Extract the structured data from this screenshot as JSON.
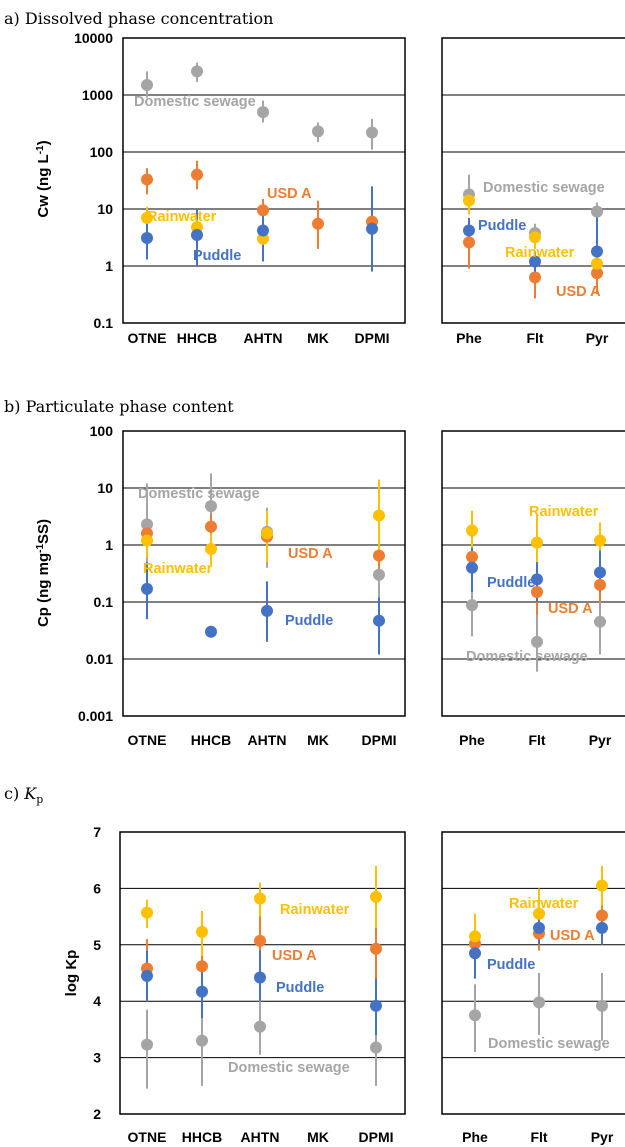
{
  "colors": {
    "Domestic sewage": "#a5a5a5",
    "USD A": "#ed7d31",
    "Rainwater": "#ffc000",
    "Puddle": "#4472c4"
  },
  "chart_data": [
    {
      "type": "scatter",
      "title": "a) Dissolved phase concentration",
      "ylabel": "Cw (ng L",
      "ylabel_sup": "-1",
      "ylabel_end": ")",
      "yscale": "log",
      "ylim": [
        0.1,
        10000
      ],
      "yticks": [
        "0.1",
        "1",
        "10",
        "100",
        "1000",
        "10000"
      ],
      "gridlines": [
        1,
        10,
        100,
        1000
      ],
      "categories_left": [
        "OTNE",
        "HHCB",
        "AHTN",
        "MK",
        "DPMI"
      ],
      "categories_right": [
        "Phe",
        "Flt",
        "Pyr"
      ],
      "series": [
        {
          "name": "Domestic sewage",
          "points": [
            {
              "x": "OTNE",
              "y": 1500,
              "lo": 900,
              "hi": 2600
            },
            {
              "x": "HHCB",
              "y": 2600,
              "lo": 1700,
              "hi": 3700
            },
            {
              "x": "AHTN",
              "y": 500,
              "lo": 330,
              "hi": 800
            },
            {
              "x": "MK",
              "y": 230,
              "lo": 150,
              "hi": 330
            },
            {
              "x": "DPMI",
              "y": 220,
              "lo": 110,
              "hi": 380
            },
            {
              "x": "Phe",
              "y": 18,
              "lo": 9,
              "hi": 40
            },
            {
              "x": "Flt",
              "y": 3.8,
              "lo": 2.5,
              "hi": 5.5
            },
            {
              "x": "Pyr",
              "y": 9,
              "lo": 5,
              "hi": 13
            }
          ]
        },
        {
          "name": "USD A",
          "points": [
            {
              "x": "OTNE",
              "y": 33,
              "lo": 18,
              "hi": 52
            },
            {
              "x": "HHCB",
              "y": 40,
              "lo": 22,
              "hi": 70
            },
            {
              "x": "AHTN",
              "y": 9.5,
              "lo": 5,
              "hi": 15
            },
            {
              "x": "MK",
              "y": 5.5,
              "lo": 2,
              "hi": 14
            },
            {
              "x": "DPMI",
              "y": 6,
              "lo": 3,
              "hi": 11
            },
            {
              "x": "Phe",
              "y": 2.6,
              "lo": 0.9,
              "hi": 4.5
            },
            {
              "x": "Flt",
              "y": 0.63,
              "lo": 0.27,
              "hi": 1.1
            },
            {
              "x": "Pyr",
              "y": 0.75,
              "lo": 0.32,
              "hi": 1.1
            }
          ]
        },
        {
          "name": "Rainwater",
          "points": [
            {
              "x": "OTNE",
              "y": 7,
              "lo": 4,
              "hi": 11
            },
            {
              "x": "HHCB",
              "y": 4.8,
              "lo": 2.5,
              "hi": 8
            },
            {
              "x": "AHTN",
              "y": 3,
              "lo": 1.8,
              "hi": 5
            },
            {
              "x": "Phe",
              "y": 14,
              "lo": 8,
              "hi": 20
            },
            {
              "x": "Flt",
              "y": 3.2,
              "lo": 2,
              "hi": 4.5
            },
            {
              "x": "Pyr",
              "y": 1.1,
              "lo": 0.6,
              "hi": 1.8
            }
          ]
        },
        {
          "name": "Puddle",
          "points": [
            {
              "x": "OTNE",
              "y": 3.1,
              "lo": 1.3,
              "hi": 6
            },
            {
              "x": "HHCB",
              "y": 3.5,
              "lo": 1,
              "hi": 10
            },
            {
              "x": "AHTN",
              "y": 4.2,
              "lo": 1.2,
              "hi": 8
            },
            {
              "x": "DPMI",
              "y": 4.5,
              "lo": 0.8,
              "hi": 25
            },
            {
              "x": "Phe",
              "y": 4.2,
              "lo": 2.5,
              "hi": 7
            },
            {
              "x": "Flt",
              "y": 1.2,
              "lo": 0.8,
              "hi": 1.8
            },
            {
              "x": "Pyr",
              "y": 1.8,
              "lo": 1,
              "hi": 8
            }
          ]
        }
      ],
      "annotations": [
        "Domestic sewage",
        "USD A",
        "Rainwater",
        "Puddle",
        "Domestic sewage",
        "Puddle",
        "Rainwater",
        "USD A"
      ]
    },
    {
      "type": "scatter",
      "title": "b) Particulate phase content",
      "ylabel": "Cp (ng mg",
      "ylabel_sup": "-1",
      "ylabel_end": "SS)",
      "yscale": "log",
      "ylim": [
        0.001,
        100
      ],
      "yticks": [
        "0.001",
        "0.01",
        "0.1",
        "1",
        "10",
        "100"
      ],
      "gridlines": [
        0.01,
        0.1,
        1,
        10
      ],
      "categories_left": [
        "OTNE",
        "HHCB",
        "AHTN",
        "MK",
        "DPMI"
      ],
      "categories_right": [
        "Phe",
        "Flt",
        "Pyr"
      ],
      "series": [
        {
          "name": "Domestic sewage",
          "points": [
            {
              "x": "OTNE",
              "y": 2.3,
              "lo": 0.3,
              "hi": 12
            },
            {
              "x": "HHCB",
              "y": 4.8,
              "lo": 0.8,
              "hi": 18
            },
            {
              "x": "AHTN",
              "y": 1.7,
              "lo": 0.4,
              "hi": 4.5
            },
            {
              "x": "DPMI",
              "y": 0.3,
              "lo": 0.05,
              "hi": 2
            },
            {
              "x": "Phe",
              "y": 0.088,
              "lo": 0.025,
              "hi": 0.4
            },
            {
              "x": "Flt",
              "y": 0.02,
              "lo": 0.006,
              "hi": 0.08
            },
            {
              "x": "Pyr",
              "y": 0.045,
              "lo": 0.012,
              "hi": 0.15
            }
          ]
        },
        {
          "name": "USD A",
          "points": [
            {
              "x": "OTNE",
              "y": 1.6,
              "lo": 0.7,
              "hi": 3
            },
            {
              "x": "HHCB",
              "y": 2.1,
              "lo": 1.2,
              "hi": 3.5
            },
            {
              "x": "AHTN",
              "y": 1.4,
              "lo": 0.5,
              "hi": 2.2
            },
            {
              "x": "DPMI",
              "y": 0.65,
              "lo": 0.25,
              "hi": 1.5
            },
            {
              "x": "Phe",
              "y": 0.62,
              "lo": 0.3,
              "hi": 1.2
            },
            {
              "x": "Flt",
              "y": 0.15,
              "lo": 0.06,
              "hi": 0.3
            },
            {
              "x": "Pyr",
              "y": 0.2,
              "lo": 0.1,
              "hi": 0.4
            }
          ]
        },
        {
          "name": "Rainwater",
          "points": [
            {
              "x": "OTNE",
              "y": 1.2,
              "lo": 0.6,
              "hi": 2.5
            },
            {
              "x": "HHCB",
              "y": 0.85,
              "lo": 0.45,
              "hi": 1.6
            },
            {
              "x": "AHTN",
              "y": 1.6,
              "lo": 0.5,
              "hi": 4
            },
            {
              "x": "DPMI",
              "y": 3.3,
              "lo": 0.7,
              "hi": 14
            },
            {
              "x": "Phe",
              "y": 1.8,
              "lo": 0.9,
              "hi": 4
            },
            {
              "x": "Flt",
              "y": 1.1,
              "lo": 0.3,
              "hi": 3.5
            },
            {
              "x": "Pyr",
              "y": 1.2,
              "lo": 0.5,
              "hi": 2.5
            }
          ]
        },
        {
          "name": "Puddle",
          "points": [
            {
              "x": "OTNE",
              "y": 0.17,
              "lo": 0.05,
              "hi": 0.5
            },
            {
              "x": "HHCB",
              "y": 0.03
            },
            {
              "x": "AHTN",
              "y": 0.07,
              "lo": 0.02,
              "hi": 0.23
            },
            {
              "x": "DPMI",
              "y": 0.047,
              "lo": 0.012,
              "hi": 0.12
            },
            {
              "x": "Phe",
              "y": 0.4,
              "lo": 0.15,
              "hi": 0.9
            },
            {
              "x": "Flt",
              "y": 0.25,
              "lo": 0.1,
              "hi": 0.5
            },
            {
              "x": "Pyr",
              "y": 0.33,
              "lo": 0.15,
              "hi": 0.8
            }
          ]
        }
      ],
      "annotations": [
        "Domestic sewage",
        "Rainwater",
        "USD A",
        "Puddle",
        "Rainwater",
        "Puddle",
        "USD A",
        "Domestic sewage"
      ]
    },
    {
      "type": "scatter",
      "title_prefix": "c) ",
      "title_k": "K",
      "title_sub": "p",
      "ylabel": "log Kp",
      "yscale": "linear",
      "ylim": [
        2,
        7
      ],
      "yticks": [
        "2",
        "3",
        "4",
        "5",
        "6",
        "7"
      ],
      "gridlines": [
        3,
        4,
        5,
        6
      ],
      "categories_left": [
        "OTNE",
        "HHCB",
        "AHTN",
        "MK",
        "DPMI"
      ],
      "categories_right": [
        "Phe",
        "Flt",
        "Pyr"
      ],
      "series": [
        {
          "name": "Domestic sewage",
          "points": [
            {
              "x": "OTNE",
              "y": 3.23,
              "lo": 2.45,
              "hi": 3.85
            },
            {
              "x": "HHCB",
              "y": 3.3,
              "lo": 2.5,
              "hi": 4.1
            },
            {
              "x": "AHTN",
              "y": 3.55,
              "lo": 3.05,
              "hi": 4.25
            },
            {
              "x": "DPMI",
              "y": 3.18,
              "lo": 2.5,
              "hi": 3.9
            },
            {
              "x": "Phe",
              "y": 3.75,
              "lo": 3.1,
              "hi": 4.3
            },
            {
              "x": "Flt",
              "y": 3.98,
              "lo": 3.4,
              "hi": 4.5
            },
            {
              "x": "Pyr",
              "y": 3.92,
              "lo": 3.3,
              "hi": 4.5
            }
          ]
        },
        {
          "name": "USD A",
          "points": [
            {
              "x": "OTNE",
              "y": 4.58,
              "lo": 4.0,
              "hi": 5.1
            },
            {
              "x": "HHCB",
              "y": 4.62,
              "lo": 4.1,
              "hi": 5.2
            },
            {
              "x": "AHTN",
              "y": 5.07,
              "lo": 4.2,
              "hi": 6.1
            },
            {
              "x": "DPMI",
              "y": 4.93,
              "lo": 3.8,
              "hi": 6.0
            },
            {
              "x": "Phe",
              "y": 5.02,
              "lo": 4.6,
              "hi": 5.4
            },
            {
              "x": "Flt",
              "y": 5.2,
              "lo": 4.9,
              "hi": 5.6
            },
            {
              "x": "Pyr",
              "y": 5.52,
              "lo": 5.1,
              "hi": 5.9
            }
          ]
        },
        {
          "name": "Rainwater",
          "points": [
            {
              "x": "OTNE",
              "y": 5.57,
              "lo": 5.3,
              "hi": 5.8
            },
            {
              "x": "HHCB",
              "y": 5.23,
              "lo": 4.8,
              "hi": 5.6
            },
            {
              "x": "AHTN",
              "y": 5.82,
              "lo": 5.5,
              "hi": 6.1
            },
            {
              "x": "DPMI",
              "y": 5.85,
              "lo": 5.3,
              "hi": 6.4
            },
            {
              "x": "Phe",
              "y": 5.15,
              "lo": 4.7,
              "hi": 5.55
            },
            {
              "x": "Flt",
              "y": 5.55,
              "lo": 5.1,
              "hi": 6.0
            },
            {
              "x": "Pyr",
              "y": 6.05,
              "lo": 5.7,
              "hi": 6.4
            }
          ]
        },
        {
          "name": "Puddle",
          "points": [
            {
              "x": "OTNE",
              "y": 4.45,
              "lo": 4.0,
              "hi": 4.9
            },
            {
              "x": "HHCB",
              "y": 4.17,
              "lo": 3.7,
              "hi": 4.6
            },
            {
              "x": "AHTN",
              "y": 4.42,
              "lo": 4.0,
              "hi": 4.9
            },
            {
              "x": "DPMI",
              "y": 3.92,
              "lo": 3.4,
              "hi": 4.4
            },
            {
              "x": "Phe",
              "y": 4.85,
              "lo": 4.4,
              "hi": 5.2
            },
            {
              "x": "Flt",
              "y": 5.3,
              "lo": 5.0,
              "hi": 5.6
            },
            {
              "x": "Pyr",
              "y": 5.3,
              "lo": 5.0,
              "hi": 5.6
            }
          ]
        }
      ],
      "annotations": [
        "Rainwater",
        "USD A",
        "Puddle",
        "Domestic sewage",
        "Rainwater",
        "USD A",
        "Puddle",
        "Domestic sewage"
      ]
    }
  ]
}
